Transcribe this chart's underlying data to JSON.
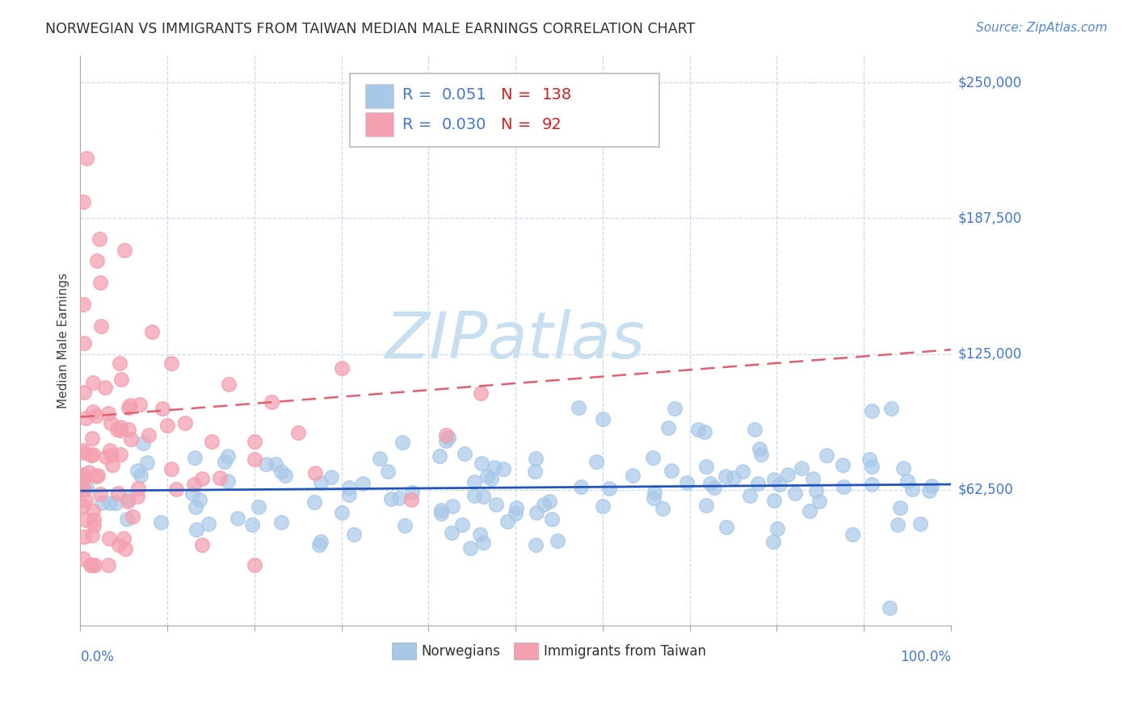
{
  "title": "NORWEGIAN VS IMMIGRANTS FROM TAIWAN MEDIAN MALE EARNINGS CORRELATION CHART",
  "source": "Source: ZipAtlas.com",
  "ylabel": "Median Male Earnings",
  "xmin": 0.0,
  "xmax": 1.0,
  "ymin": 0,
  "ymax": 262500,
  "blue_R": 0.051,
  "blue_N": 138,
  "pink_R": 0.03,
  "pink_N": 92,
  "blue_color": "#a8c8e8",
  "pink_color": "#f4a0b0",
  "blue_line_color": "#2255bb",
  "pink_line_color": "#e06070",
  "title_color": "#303030",
  "source_color": "#5588cc",
  "axis_label_color": "#4477cc",
  "legend_R_color": "#4477cc",
  "background_color": "#ffffff",
  "grid_color": "#c8d8ee",
  "watermark_color": "#c8dff0",
  "ytick_vals": [
    0,
    62500,
    125000,
    187500,
    250000
  ],
  "ytick_labels": [
    "",
    "$62,500",
    "$125,000",
    "$187,500",
    "$250,000"
  ]
}
